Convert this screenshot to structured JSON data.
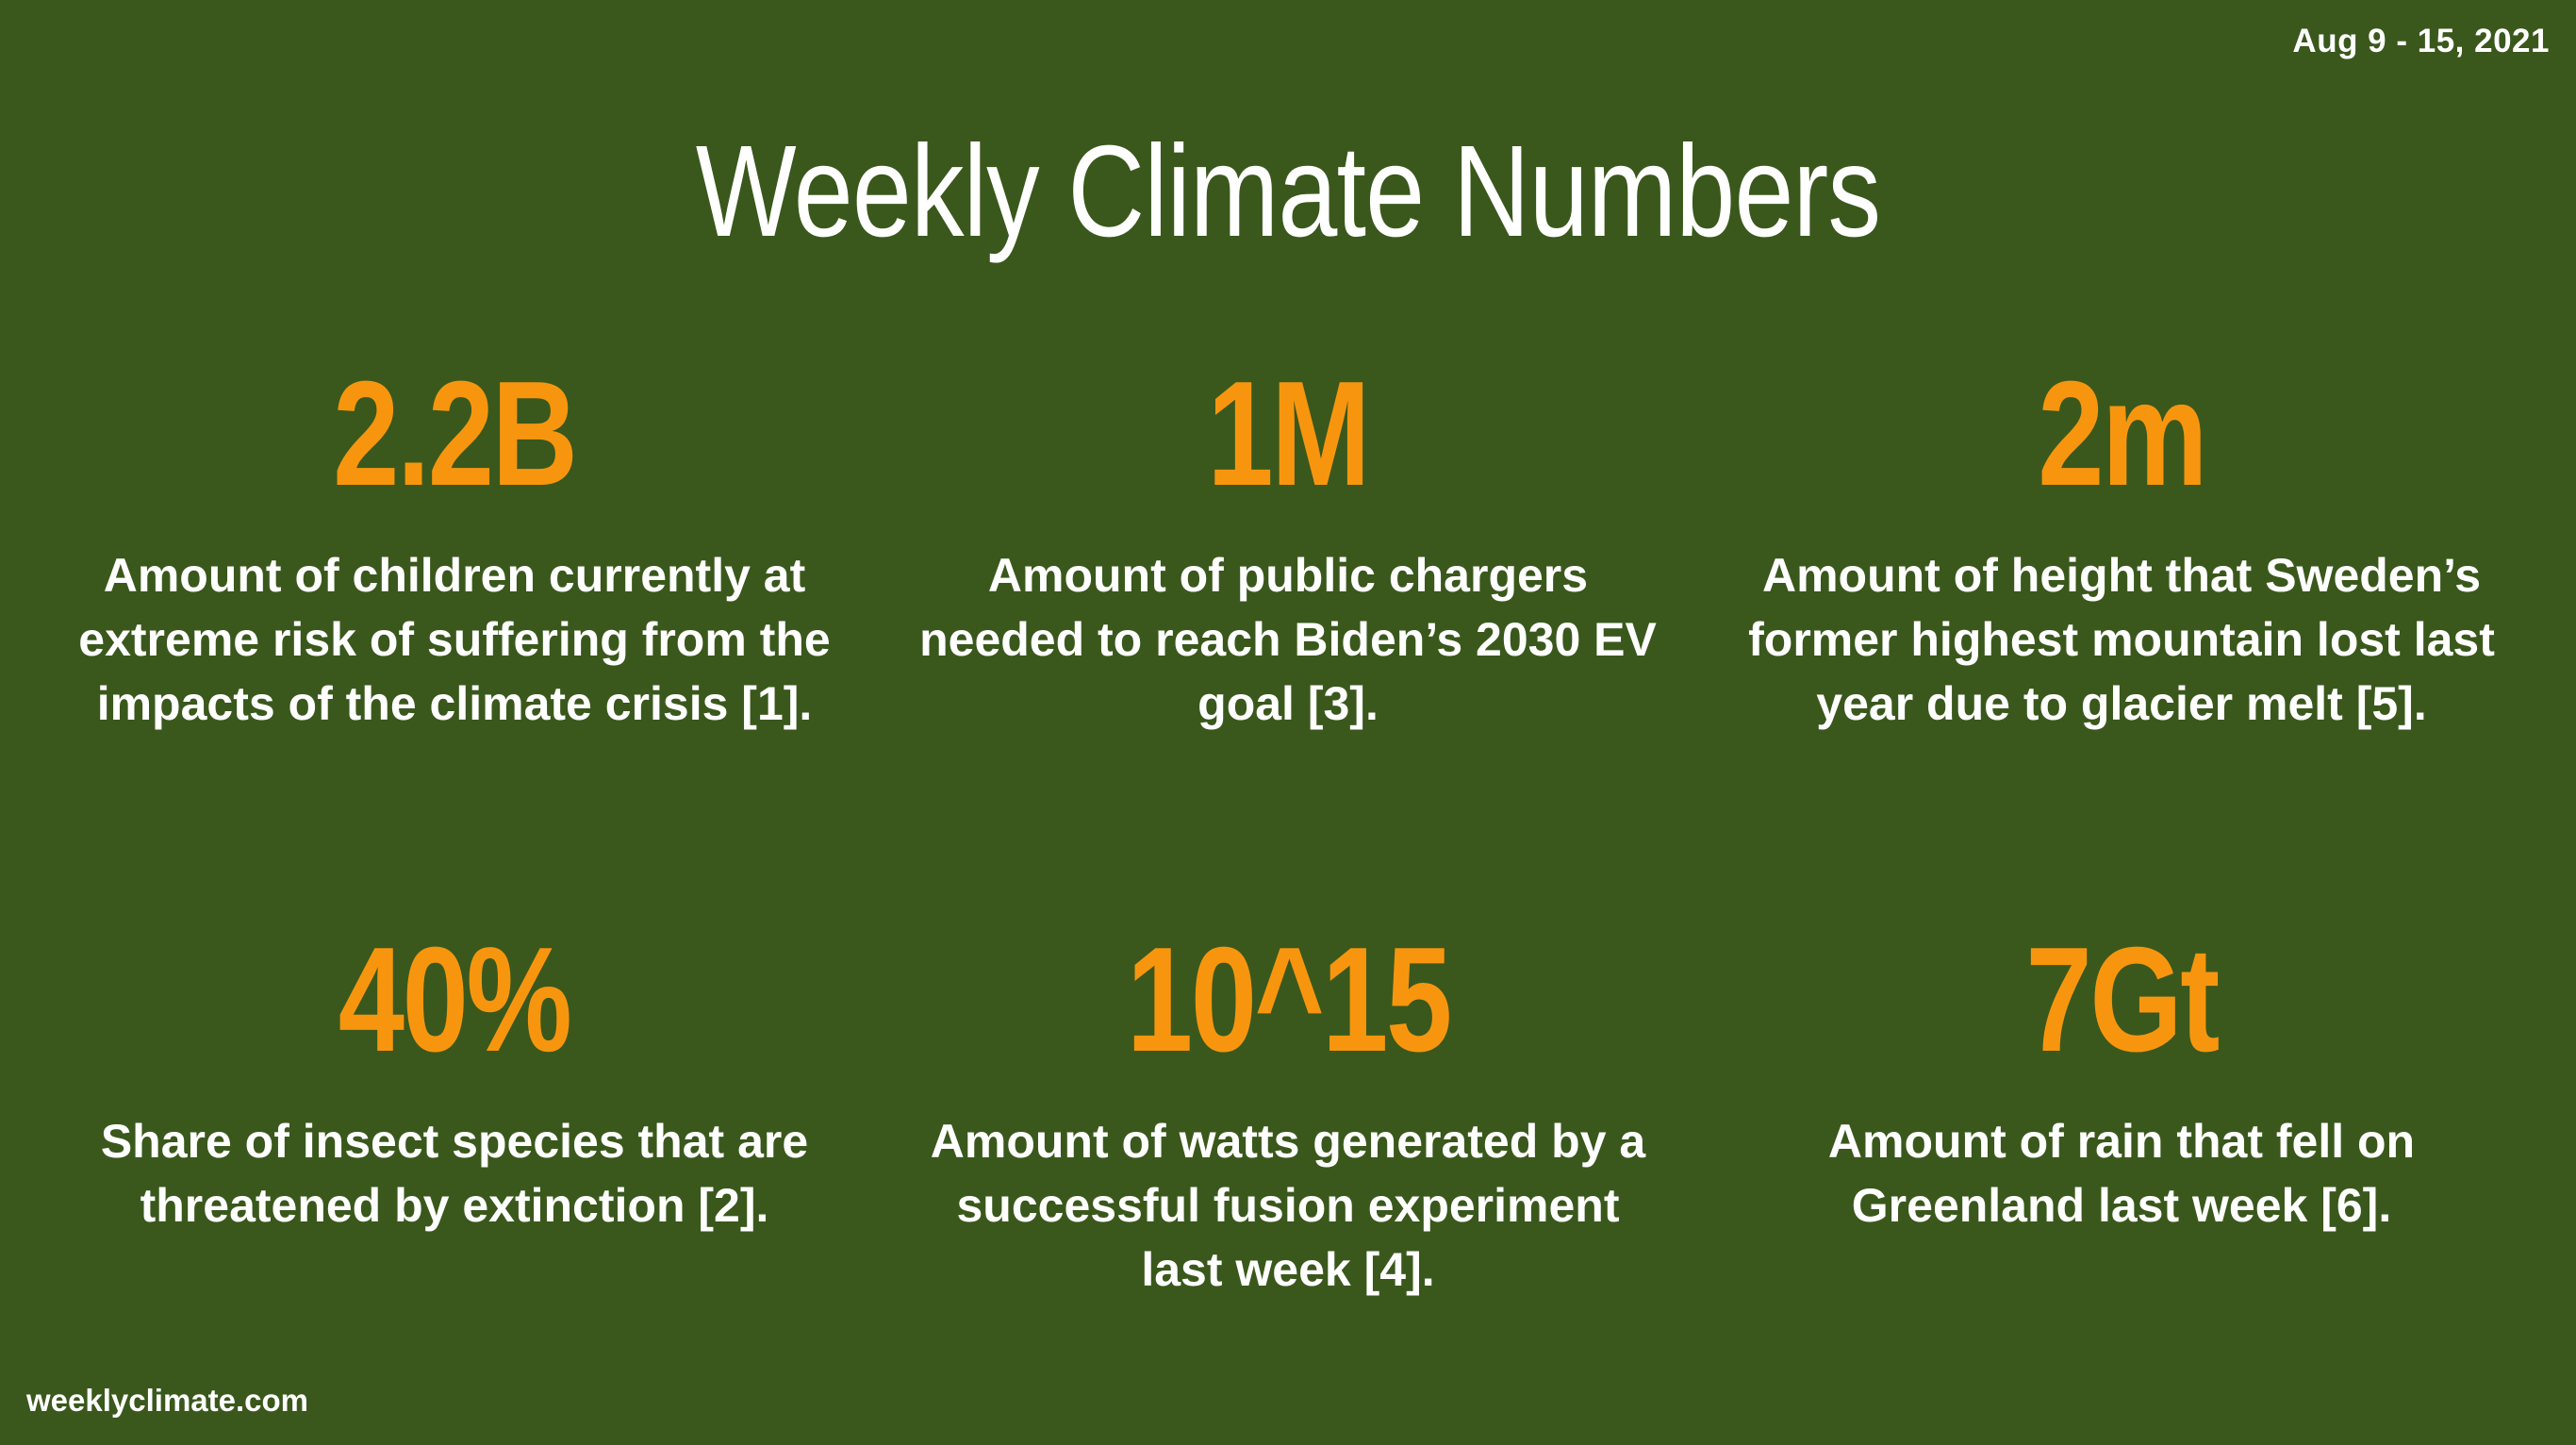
{
  "date_range": "Aug 9 - 15, 2021",
  "title": "Weekly Climate Numbers",
  "stats": [
    {
      "value": "2.2B",
      "description": "Amount of children currently at extreme risk of suffering from the impacts of the climate crisis [1]."
    },
    {
      "value": "1M",
      "description": "Amount of public chargers needed to reach Biden’s 2030 EV goal [3]."
    },
    {
      "value": "2m",
      "description": "Amount of height that Sweden’s former highest mountain lost last year due to glacier melt [5]."
    },
    {
      "value": "40%",
      "description": "Share of insect species that are threatened by extinction [2]."
    },
    {
      "value": "10^15",
      "description": "Amount of watts generated by a successful fusion experiment last week [4]."
    },
    {
      "value": "7Gt",
      "description": "Amount of rain that fell on Greenland last week [6]."
    }
  ],
  "footer": "weeklyclimate.com",
  "colors": {
    "background": "#3a581c",
    "accent": "#f7960e",
    "text": "#ffffff"
  }
}
